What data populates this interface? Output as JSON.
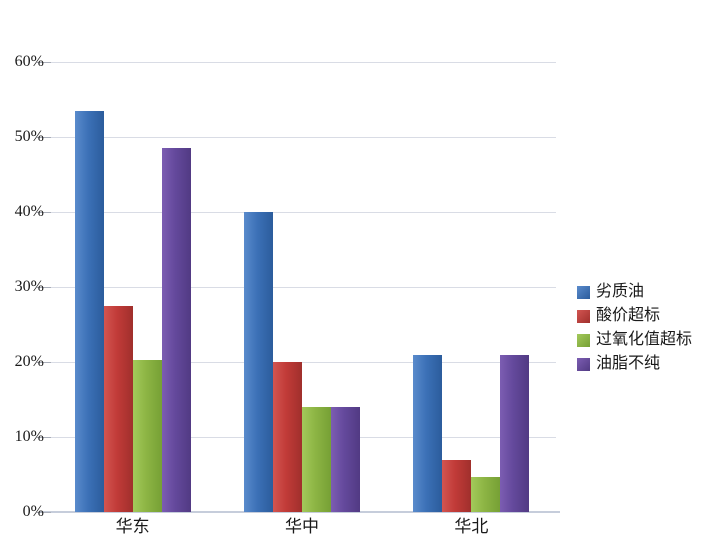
{
  "chart_data": {
    "type": "bar",
    "title": "",
    "categories": [
      "华东",
      "华中",
      "华北"
    ],
    "series": [
      {
        "name": "劣质油",
        "color": "#3C71B7",
        "color_light": "#5A8BCC",
        "color_dark": "#2B5C9C",
        "values": [
          53.5,
          40,
          21
        ]
      },
      {
        "name": "酸价超标",
        "color": "#C13B38",
        "color_light": "#D25551",
        "color_dark": "#A02F2C",
        "values": [
          27.5,
          20,
          7
        ]
      },
      {
        "name": "过氧化值超标",
        "color": "#8DB544",
        "color_light": "#A3C95B",
        "color_dark": "#76A035",
        "values": [
          20.3,
          14,
          4.7
        ]
      },
      {
        "name": "油脂不纯",
        "color": "#64499C",
        "color_light": "#7C5DB2",
        "color_dark": "#513A83",
        "values": [
          48.5,
          14,
          21
        ]
      }
    ],
    "ylim": [
      0,
      60
    ],
    "ytick_step": 10,
    "ytick_labels": [
      "0%",
      "10%",
      "20%",
      "30%",
      "40%",
      "50%",
      "60%"
    ],
    "xlabel": "",
    "ylabel": "",
    "grid": true,
    "legend_position": "right"
  },
  "colors": {
    "background": "#FFFFFF",
    "gridline": "#D9DCE5",
    "axis_line": "#C6CDDB",
    "tick": "#A9AEB9",
    "text": "#1A1A1A"
  }
}
